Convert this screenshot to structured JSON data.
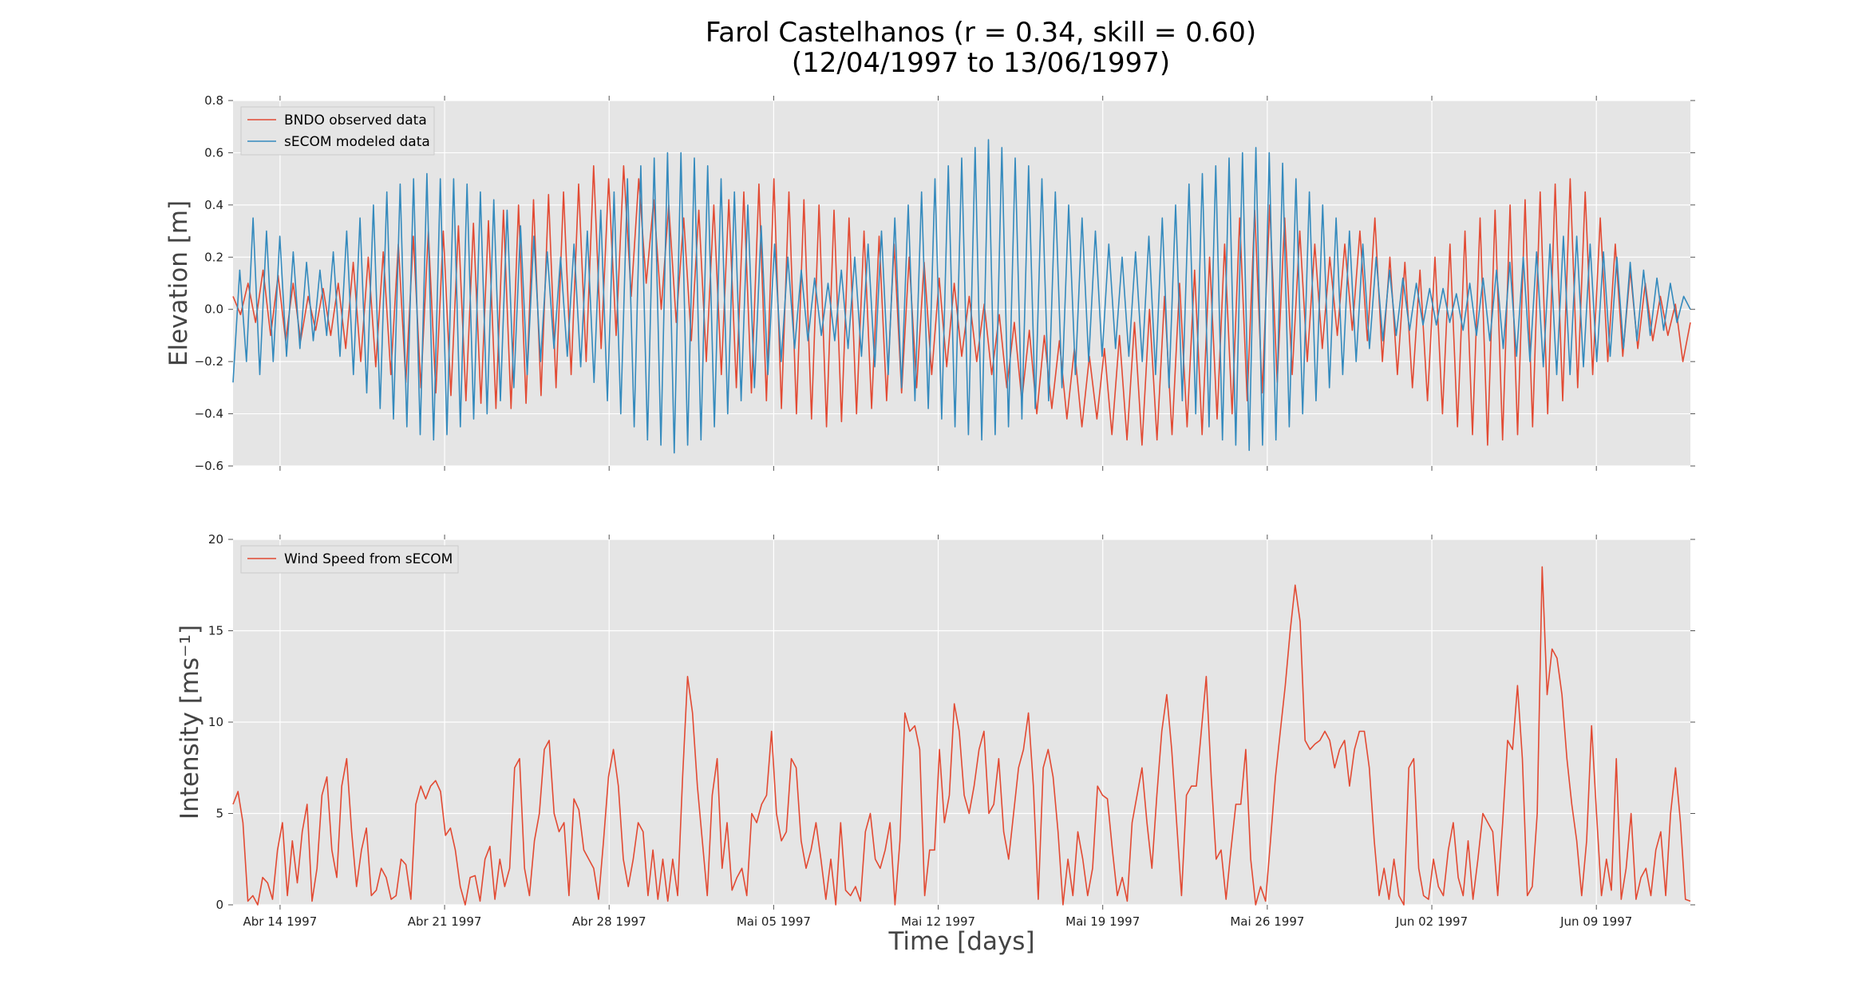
{
  "title_line1": "Farol Castelhanos (r = 0.34, skill = 0.60)",
  "title_line2": "(12/04/1997 to 13/06/1997)",
  "colors": {
    "observed": "#E24A33",
    "modeled": "#348ABD",
    "wind": "#E24A33",
    "panel_bg": "#E5E5E5",
    "grid": "#FFFFFF"
  },
  "chart_data": [
    {
      "type": "line",
      "title": "Farol Castelhanos (r = 0.34, skill = 0.60) (12/04/1997 to 13/06/1997)",
      "xlabel": "",
      "ylabel": "Elevation [m]",
      "ylim": [
        -0.6,
        0.8
      ],
      "yticks": [
        "−0.6",
        "−0.4",
        "−0.2",
        "0.0",
        "0.2",
        "0.4",
        "0.6",
        "0.8"
      ],
      "xlim": [
        "1997-04-12",
        "1997-06-13"
      ],
      "x_tick_labels": [
        "Abr 14 1997",
        "Abr 21 1997",
        "Abr 28 1997",
        "Mai 05 1997",
        "Mai 12 1997",
        "Mai 19 1997",
        "Mai 26 1997",
        "Jun 02 1997",
        "Jun 09 1997"
      ],
      "legend_position": "upper-left",
      "grid": true,
      "series": [
        {
          "name": "BNDO observed data",
          "color": "#E24A33",
          "sampling": "approx. one value per 6 h, 1997-04-12 00:00 to 1997-06-13 00:00, elevation in m",
          "y": [
            0.05,
            -0.02,
            0.1,
            -0.05,
            0.15,
            -0.1,
            0.13,
            -0.12,
            0.1,
            -0.12,
            0.05,
            -0.08,
            0.08,
            -0.1,
            0.1,
            -0.15,
            0.18,
            -0.2,
            0.2,
            -0.22,
            0.22,
            -0.25,
            0.25,
            -0.28,
            0.28,
            -0.3,
            0.3,
            -0.32,
            0.3,
            -0.33,
            0.32,
            -0.35,
            0.33,
            -0.36,
            0.34,
            -0.38,
            0.38,
            -0.38,
            0.4,
            -0.36,
            0.42,
            -0.33,
            0.44,
            -0.3,
            0.45,
            -0.25,
            0.48,
            -0.2,
            0.55,
            -0.15,
            0.5,
            -0.1,
            0.55,
            0.05,
            0.5,
            0.1,
            0.42,
            0.0,
            0.4,
            -0.05,
            0.35,
            -0.12,
            0.38,
            -0.2,
            0.4,
            -0.25,
            0.42,
            -0.3,
            0.45,
            -0.32,
            0.48,
            -0.35,
            0.5,
            -0.38,
            0.45,
            -0.4,
            0.42,
            -0.42,
            0.4,
            -0.45,
            0.38,
            -0.43,
            0.35,
            -0.4,
            0.3,
            -0.38,
            0.28,
            -0.35,
            0.25,
            -0.32,
            0.2,
            -0.3,
            0.18,
            -0.25,
            0.12,
            -0.22,
            0.1,
            -0.18,
            0.05,
            -0.2,
            0.02,
            -0.25,
            -0.02,
            -0.3,
            -0.05,
            -0.35,
            -0.08,
            -0.4,
            -0.1,
            -0.38,
            -0.12,
            -0.42,
            -0.15,
            -0.45,
            -0.18,
            -0.42,
            -0.15,
            -0.48,
            -0.1,
            -0.5,
            -0.05,
            -0.52,
            0.0,
            -0.5,
            0.05,
            -0.48,
            0.1,
            -0.45,
            0.15,
            -0.48,
            0.2,
            -0.42,
            0.25,
            -0.4,
            0.35,
            -0.35,
            0.38,
            -0.32,
            0.4,
            -0.28,
            0.35,
            -0.25,
            0.3,
            -0.2,
            0.25,
            -0.15,
            0.2,
            -0.1,
            0.25,
            -0.08,
            0.3,
            -0.12,
            0.35,
            -0.2,
            0.2,
            -0.25,
            0.18,
            -0.3,
            0.15,
            -0.35,
            0.2,
            -0.4,
            0.25,
            -0.45,
            0.3,
            -0.48,
            0.35,
            -0.52,
            0.38,
            -0.5,
            0.4,
            -0.48,
            0.42,
            -0.45,
            0.45,
            -0.4,
            0.48,
            -0.35,
            0.5,
            -0.3,
            0.45,
            -0.25,
            0.35,
            -0.2,
            0.25,
            -0.18,
            0.15,
            -0.15,
            0.1,
            -0.12,
            0.05,
            -0.1,
            0.02,
            -0.2,
            -0.05
          ]
        },
        {
          "name": "sECOM modeled data",
          "color": "#348ABD",
          "sampling": "approx. one value per 6 h, 1997-04-12 00:00 to 1997-06-13 00:00, elevation in m",
          "y": [
            -0.28,
            0.15,
            -0.2,
            0.35,
            -0.25,
            0.3,
            -0.2,
            0.28,
            -0.18,
            0.22,
            -0.15,
            0.18,
            -0.12,
            0.15,
            -0.1,
            0.22,
            -0.18,
            0.3,
            -0.25,
            0.35,
            -0.32,
            0.4,
            -0.38,
            0.45,
            -0.42,
            0.48,
            -0.45,
            0.5,
            -0.48,
            0.52,
            -0.5,
            0.5,
            -0.48,
            0.5,
            -0.45,
            0.48,
            -0.42,
            0.45,
            -0.4,
            0.42,
            -0.35,
            0.38,
            -0.3,
            0.32,
            -0.25,
            0.28,
            -0.2,
            0.22,
            -0.15,
            0.2,
            -0.18,
            0.25,
            -0.22,
            0.3,
            -0.28,
            0.38,
            -0.35,
            0.45,
            -0.4,
            0.5,
            -0.45,
            0.55,
            -0.5,
            0.58,
            -0.52,
            0.6,
            -0.55,
            0.6,
            -0.52,
            0.58,
            -0.5,
            0.55,
            -0.45,
            0.5,
            -0.4,
            0.45,
            -0.35,
            0.4,
            -0.3,
            0.32,
            -0.25,
            0.25,
            -0.2,
            0.2,
            -0.15,
            0.15,
            -0.12,
            0.12,
            -0.1,
            0.1,
            -0.12,
            0.15,
            -0.15,
            0.2,
            -0.18,
            0.25,
            -0.22,
            0.3,
            -0.25,
            0.35,
            -0.3,
            0.4,
            -0.35,
            0.45,
            -0.38,
            0.5,
            -0.42,
            0.55,
            -0.45,
            0.58,
            -0.48,
            0.62,
            -0.5,
            0.65,
            -0.48,
            0.62,
            -0.45,
            0.58,
            -0.42,
            0.55,
            -0.38,
            0.5,
            -0.35,
            0.45,
            -0.3,
            0.4,
            -0.25,
            0.35,
            -0.2,
            0.3,
            -0.18,
            0.25,
            -0.15,
            0.2,
            -0.18,
            0.22,
            -0.2,
            0.28,
            -0.25,
            0.35,
            -0.3,
            0.4,
            -0.35,
            0.48,
            -0.4,
            0.52,
            -0.45,
            0.55,
            -0.5,
            0.58,
            -0.52,
            0.6,
            -0.54,
            0.62,
            -0.52,
            0.6,
            -0.5,
            0.56,
            -0.45,
            0.5,
            -0.4,
            0.45,
            -0.35,
            0.4,
            -0.3,
            0.35,
            -0.25,
            0.3,
            -0.2,
            0.25,
            -0.15,
            0.2,
            -0.12,
            0.15,
            -0.1,
            0.12,
            -0.08,
            0.1,
            -0.06,
            0.08,
            -0.06,
            0.08,
            -0.05,
            0.06,
            -0.08,
            0.1,
            -0.1,
            0.12,
            -0.12,
            0.15,
            -0.15,
            0.18,
            -0.18,
            0.2,
            -0.2,
            0.22,
            -0.22,
            0.25,
            -0.25,
            0.28,
            -0.25,
            0.28,
            -0.22,
            0.25,
            -0.2,
            0.22,
            -0.18,
            0.2,
            -0.15,
            0.18,
            -0.12,
            0.15,
            -0.1,
            0.12,
            -0.08,
            0.1,
            -0.05,
            0.05,
            0.0
          ]
        }
      ]
    },
    {
      "type": "line",
      "xlabel": "Time [days]",
      "ylabel": "Intensity [ms⁻¹]",
      "ylim": [
        0,
        20
      ],
      "yticks": [
        "0",
        "5",
        "10",
        "15",
        "20"
      ],
      "xlim": [
        "1997-04-12",
        "1997-06-13"
      ],
      "x_tick_labels": [
        "Abr 14 1997",
        "Abr 21 1997",
        "Abr 28 1997",
        "Mai 05 1997",
        "Mai 12 1997",
        "Mai 19 1997",
        "Mai 26 1997",
        "Jun 02 1997",
        "Jun 09 1997"
      ],
      "legend_position": "upper-left",
      "grid": true,
      "series": [
        {
          "name": "Wind Speed from sECOM",
          "color": "#E24A33",
          "sampling": "approx. one value per 6 h, 1997-04-12 00:00 to 1997-06-13 00:00, speed in m/s",
          "y": [
            5.5,
            6.2,
            4.5,
            0.2,
            0.5,
            0.0,
            1.5,
            1.2,
            0.3,
            3.0,
            4.5,
            0.5,
            3.5,
            1.2,
            4.0,
            5.5,
            0.2,
            2.0,
            6.0,
            7.0,
            3.0,
            1.5,
            6.5,
            8.0,
            4.0,
            1.0,
            3.0,
            4.2,
            0.5,
            0.8,
            2.0,
            1.5,
            0.3,
            0.5,
            2.5,
            2.2,
            0.3,
            5.5,
            6.5,
            5.8,
            6.5,
            6.8,
            6.2,
            3.8,
            4.2,
            3.0,
            1.0,
            0.0,
            1.5,
            1.6,
            0.2,
            2.5,
            3.2,
            0.3,
            2.5,
            1.0,
            2.0,
            7.5,
            8.0,
            2.0,
            0.5,
            3.5,
            5.0,
            8.5,
            9.0,
            5.0,
            4.0,
            4.5,
            0.5,
            5.8,
            5.2,
            3.0,
            2.5,
            2.0,
            0.3,
            3.5,
            7.0,
            8.5,
            6.5,
            2.5,
            1.0,
            2.5,
            4.5,
            4.0,
            0.5,
            3.0,
            0.3,
            2.5,
            0.2,
            2.5,
            0.5,
            7.0,
            12.5,
            10.5,
            6.5,
            3.5,
            0.5,
            6.0,
            8.0,
            2.0,
            4.5,
            0.8,
            1.5,
            2.0,
            0.5,
            5.0,
            4.5,
            5.5,
            6.0,
            9.5,
            5.0,
            3.5,
            4.0,
            8.0,
            7.5,
            3.5,
            2.0,
            3.0,
            4.5,
            2.5,
            0.3,
            2.5,
            0.0,
            4.5,
            0.8,
            0.5,
            1.0,
            0.2,
            4.0,
            5.0,
            2.5,
            2.0,
            3.0,
            4.5,
            0.0,
            3.5,
            10.5,
            9.5,
            9.8,
            8.5,
            0.5,
            3.0,
            3.0,
            8.5,
            4.5,
            6.0,
            11.0,
            9.5,
            6.0,
            5.0,
            6.5,
            8.5,
            9.5,
            5.0,
            5.5,
            8.0,
            4.0,
            2.5,
            5.0,
            7.5,
            8.5,
            10.5,
            6.5,
            0.3,
            7.5,
            8.5,
            7.0,
            4.0,
            0.0,
            2.5,
            0.5,
            4.0,
            2.5,
            0.5,
            2.0,
            6.5,
            6.0,
            5.8,
            3.0,
            0.5,
            1.5,
            0.2,
            4.5,
            6.0,
            7.5,
            4.5,
            2.0,
            6.0,
            9.5,
            11.5,
            8.5,
            4.5,
            0.5,
            6.0,
            6.5,
            6.5,
            9.5,
            12.5,
            7.0,
            2.5,
            3.0,
            0.3,
            3.0,
            5.5,
            5.5,
            8.5,
            2.5,
            0.0,
            1.0,
            0.2,
            3.5,
            7.0,
            9.5,
            12.0,
            15.0,
            17.5,
            15.5,
            9.0,
            8.5,
            8.8,
            9.0,
            9.5,
            9.0,
            7.5,
            8.5,
            9.0,
            6.5,
            8.5,
            9.5,
            9.5,
            7.5,
            3.5,
            0.5,
            2.0,
            0.3,
            2.5,
            0.5,
            0.0,
            7.5,
            8.0,
            2.0,
            0.5,
            0.3,
            2.5,
            1.0,
            0.5,
            3.0,
            4.5,
            1.5,
            0.5,
            3.5,
            0.3,
            2.5,
            5.0,
            4.5,
            4.0,
            0.5,
            4.5,
            9.0,
            8.5,
            12.0,
            8.0,
            0.5,
            1.0,
            5.0,
            18.5,
            11.5,
            14.0,
            13.5,
            11.5,
            8.0,
            5.5,
            3.5,
            0.5,
            3.5,
            9.8,
            5.0,
            0.5,
            2.5,
            0.8,
            8.0,
            0.3,
            2.0,
            5.0,
            0.3,
            1.5,
            2.0,
            0.5,
            3.0,
            4.0,
            0.5,
            5.0,
            7.5,
            4.5,
            0.3,
            0.2
          ]
        }
      ]
    }
  ]
}
